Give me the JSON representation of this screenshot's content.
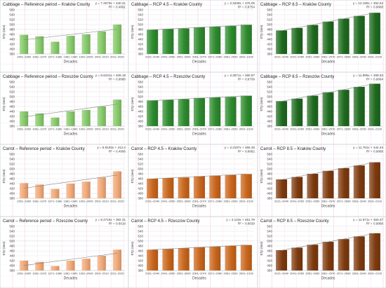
{
  "chart_data": [
    {
      "type": "bar",
      "title": "Cabbage – Reference period – Kraków County",
      "categories": [
        "1951–1960",
        "1961–1970",
        "1971–1980",
        "1981–1990",
        "1991–2000",
        "2001–2010",
        "2011–2020"
      ],
      "values": [
        458,
        452,
        430,
        454,
        460,
        472,
        500
      ],
      "xlabel": "Decades",
      "ylabel": "ETp (mm)",
      "ylim": [
        380,
        560
      ],
      "yticks": [
        380,
        400,
        420,
        440,
        460,
        480,
        500,
        520,
        540,
        560
      ],
      "grid": true,
      "trendline": {
        "equation": "y = 7.2579x + 430.21",
        "r_squared": "R² = 0.4891"
      },
      "bar_color": "#86c96a"
    },
    {
      "type": "bar",
      "title": "Cabbage – RCP 4.5 – Kraków County",
      "categories": [
        "2021–2040",
        "2041–2050",
        "2051–2060",
        "2061–2070",
        "2071–2080",
        "2081–2090",
        "2091–2100"
      ],
      "values": [
        479,
        482,
        484,
        489,
        491,
        494,
        499
      ],
      "xlabel": "Decades",
      "ylabel": "ETp (mm)",
      "ylim": [
        380,
        560
      ],
      "yticks": [
        380,
        400,
        420,
        440,
        460,
        480,
        500,
        520,
        540,
        560
      ],
      "grid": true,
      "trendline": {
        "equation": "y = 3.3438x + 475.05",
        "r_squared": "R² = 0.8754"
      },
      "bar_color": "#2d8a2d"
    },
    {
      "type": "bar",
      "title": "Cabbage – RCP 8.5 – Kraków County",
      "categories": [
        "2021–2040",
        "2041–2050",
        "2051–2060",
        "2061–2070",
        "2071–2080",
        "2081–2090",
        "2091–2100"
      ],
      "values": [
        476,
        486,
        498,
        512,
        524,
        535,
        548
      ],
      "xlabel": "Decades",
      "ylabel": "ETp (mm)",
      "ylim": [
        380,
        560
      ],
      "yticks": [
        380,
        400,
        420,
        440,
        460,
        480,
        500,
        520,
        540,
        560
      ],
      "grid": true,
      "trendline": {
        "equation": "y = 12.195x + 462.52",
        "r_squared": "R² = 0.9868"
      },
      "bar_color": "#1e6a1e"
    },
    {
      "type": "bar",
      "title": "Cabbage – Reference period – Rzeszów County",
      "categories": [
        "1951–1960",
        "1961–1970",
        "1971–1980",
        "1981–1990",
        "1991–2000",
        "2001–2010",
        "2011–2020"
      ],
      "values": [
        440,
        432,
        415,
        440,
        446,
        460,
        488
      ],
      "xlabel": "Decades",
      "ylabel": "ETp (mm)",
      "ylim": [
        380,
        560
      ],
      "yticks": [
        380,
        400,
        420,
        440,
        460,
        480,
        500,
        520,
        540,
        560
      ],
      "grid": true,
      "trendline": {
        "equation": "y = 8.6431x + 409.19",
        "r_squared": "R² = 0.6686"
      },
      "bar_color": "#86c96a"
    },
    {
      "type": "bar",
      "title": "Cabbage – RCP 4.5 – Rzeszów County",
      "categories": [
        "2021–2040",
        "2041–2050",
        "2051–2060",
        "2061–2070",
        "2071–2080",
        "2081–2090",
        "2091–2100"
      ],
      "values": [
        485,
        487,
        490,
        495,
        497,
        499,
        504
      ],
      "xlabel": "Decades",
      "ylabel": "ETp (mm)",
      "ylim": [
        380,
        560
      ],
      "yticks": [
        380,
        400,
        420,
        440,
        460,
        480,
        500,
        520,
        540,
        560
      ],
      "grid": true,
      "trendline": {
        "equation": "y = 3.2671x + 480.87",
        "r_squared": "R² = 0.8709"
      },
      "bar_color": "#2d8a2d"
    },
    {
      "type": "bar",
      "title": "Cabbage – RCP 8.5 – Rzeszów County",
      "categories": [
        "2021–2040",
        "2041–2050",
        "2051–2060",
        "2061–2070",
        "2071–2080",
        "2081–2090",
        "2091–2100"
      ],
      "values": [
        482,
        492,
        504,
        518,
        528,
        540,
        553
      ],
      "xlabel": "Decades",
      "ylabel": "ETp (mm)",
      "ylim": [
        380,
        560
      ],
      "yticks": [
        380,
        400,
        420,
        440,
        460,
        480,
        500,
        520,
        540,
        560
      ],
      "grid": true,
      "trendline": {
        "equation": "y = 11.996x + 468.93",
        "r_squared": "R² = 0.9864"
      },
      "bar_color": "#1e6a1e"
    },
    {
      "type": "bar",
      "title": "Carrot – Reference period – Kraków County",
      "categories": [
        "1951–1960",
        "1961–1970",
        "1971–1980",
        "1981–1990",
        "1991–2000",
        "2001–2010",
        "2011–2020"
      ],
      "values": [
        442,
        436,
        418,
        440,
        448,
        465,
        490
      ],
      "xlabel": "Decades",
      "ylabel": "ETp (mm)",
      "ylim": [
        380,
        560
      ],
      "yticks": [
        380,
        400,
        420,
        440,
        460,
        480,
        500,
        520,
        540,
        560
      ],
      "grid": true,
      "trendline": {
        "equation": "y = 8.9183x + 412.4",
        "r_squared": "R² = 0.4906"
      },
      "bar_color": "#f0a878"
    },
    {
      "type": "bar",
      "title": "Carrot – RCP 4.5 – Kraków County",
      "categories": [
        "2021–2040",
        "2041–2050",
        "2051–2060",
        "2061–2070",
        "2071–2080",
        "2081–2090",
        "2091–2100"
      ],
      "values": [
        460,
        463,
        465,
        470,
        472,
        475,
        479
      ],
      "xlabel": "Decades",
      "ylabel": "ETp (mm)",
      "ylim": [
        380,
        560
      ],
      "yticks": [
        380,
        400,
        420,
        440,
        460,
        480,
        500,
        520,
        540,
        560
      ],
      "grid": true,
      "trendline": {
        "equation": "y = 3.2197x + 456.35",
        "r_squared": "R² = 0.8682"
      },
      "bar_color": "#c8651b"
    },
    {
      "type": "bar",
      "title": "Carrot – RCP 8.5 – Kraków County",
      "categories": [
        "2021–2040",
        "2041–2050",
        "2051–2060",
        "2061–2070",
        "2071–2080",
        "2081–2090",
        "2091–2100"
      ],
      "values": [
        457,
        467,
        480,
        492,
        503,
        514,
        527
      ],
      "xlabel": "Decades",
      "ylabel": "ETp (mm)",
      "ylim": [
        380,
        560
      ],
      "yticks": [
        380,
        400,
        420,
        440,
        460,
        480,
        500,
        520,
        540,
        560
      ],
      "grid": true,
      "trendline": {
        "equation": "y = 11.781x + 444.34",
        "r_squared": "R² = 0.9868"
      },
      "bar_color": "#7d3a0e"
    },
    {
      "type": "bar",
      "title": "Carrot – Reference period – Rzeszów County",
      "categories": [
        "1951–1960",
        "1961–1970",
        "1971–1980",
        "1981–1990",
        "1991–2000",
        "2001–2010",
        "2011–2020"
      ],
      "values": [
        420,
        415,
        398,
        420,
        428,
        440,
        465
      ],
      "xlabel": "Decades",
      "ylabel": "ETp (mm)",
      "ylim": [
        380,
        560
      ],
      "yticks": [
        380,
        400,
        420,
        440,
        460,
        480,
        500,
        520,
        540,
        560
      ],
      "grid": true,
      "trendline": {
        "equation": "y = 8.2715x + 392.31",
        "r_squared": "R² = 0.6616"
      },
      "bar_color": "#f0a878"
    },
    {
      "type": "bar",
      "title": "Carrot – RCP 4.5 – Rzeszów County",
      "categories": [
        "2021–2040",
        "2041–2050",
        "2051–2060",
        "2061–2070",
        "2071–2080",
        "2081–2090",
        "2091–2100"
      ],
      "values": [
        465,
        468,
        471,
        475,
        477,
        480,
        484
      ],
      "xlabel": "Decades",
      "ylabel": "ETp (mm)",
      "ylim": [
        380,
        560
      ],
      "yticks": [
        380,
        400,
        420,
        440,
        460,
        480,
        500,
        520,
        540,
        560
      ],
      "grid": true,
      "trendline": {
        "equation": "y = 3.143x + 461.79",
        "r_squared": "R² = 0.8639"
      },
      "bar_color": "#c8651b"
    },
    {
      "type": "bar",
      "title": "Carrot – RCP 8.5 – Rzeszów County",
      "categories": [
        "2021–2040",
        "2041–2050",
        "2051–2060",
        "2061–2070",
        "2071–2080",
        "2081–2090",
        "2091–2100"
      ],
      "values": [
        463,
        473,
        485,
        497,
        508,
        519,
        532
      ],
      "xlabel": "Decades",
      "ylabel": "ETp (mm)",
      "ylim": [
        380,
        560
      ],
      "yticks": [
        380,
        400,
        420,
        440,
        460,
        480,
        500,
        520,
        540,
        560
      ],
      "grid": true,
      "trendline": {
        "equation": "y = 11.571x + 450.37",
        "r_squared": "R² = 0.9868"
      },
      "bar_color": "#7d3a0e"
    }
  ]
}
